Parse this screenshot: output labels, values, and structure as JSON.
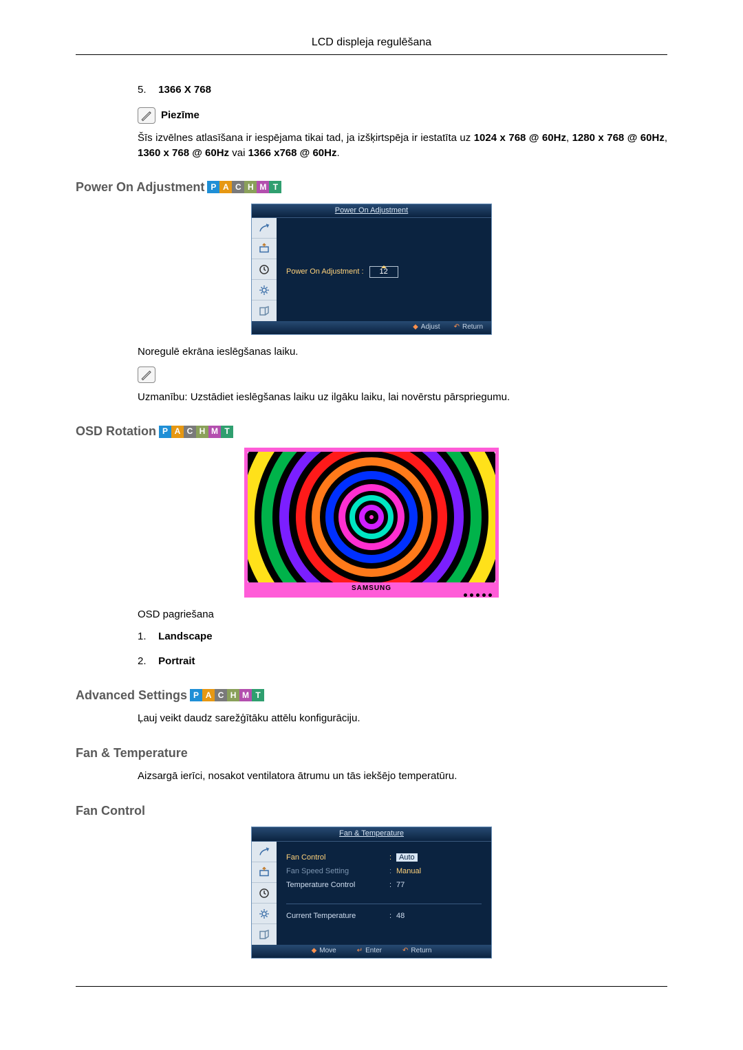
{
  "page_header": "LCD displeja regulēšana",
  "list5": {
    "num": "5.",
    "text": "1366 X 768"
  },
  "note_label": "Piezīme",
  "note_body_1": "Šīs izvēlnes atlasīšana ir iespējama tikai tad, ja izšķirtspēja ir iestatīta uz ",
  "note_bold_1": "1024 x 768 @ 60Hz",
  "note_sep_1": ", ",
  "note_bold_2": "1280 x 768 @ 60Hz",
  "note_sep_2": ", ",
  "note_bold_3": "1360 x 768 @ 60Hz",
  "note_mid": " vai ",
  "note_bold_4": "1366 x768 @ 60Hz",
  "note_tail": ".",
  "sec_power": "Power On Adjustment",
  "badges": {
    "items": [
      "P",
      "A",
      "C",
      "H",
      "M",
      "T"
    ],
    "colors": [
      "#1f8fd6",
      "#e69813",
      "#7a7a7a",
      "#8aa05a",
      "#b34fae",
      "#2f9f6f"
    ]
  },
  "osd_power": {
    "title": "Power On Adjustment",
    "label": "Power On Adjustment :",
    "value": "12",
    "footer_adjust": "Adjust",
    "footer_return": "Return"
  },
  "power_para1": "Noregulē ekrāna ieslēgšanas laiku.",
  "power_para2": "Uzmanību: Uzstādiet ieslēgšanas laiku uz ilgāku laiku, lai novērstu pārspriegumu.",
  "sec_osd_rot": "OSD Rotation",
  "rot_figure": {
    "brand": "SAMSUNG",
    "rings": [
      {
        "size": 520,
        "color": "#00a6ff",
        "w": 22
      },
      {
        "size": 440,
        "color": "#ffffff",
        "w": 18
      },
      {
        "size": 380,
        "color": "#ffe11a",
        "w": 20
      },
      {
        "size": 320,
        "color": "#00b34a",
        "w": 16
      },
      {
        "size": 268,
        "color": "#7b1fff",
        "w": 14
      },
      {
        "size": 220,
        "color": "#ff1a1a",
        "w": 14
      },
      {
        "size": 174,
        "color": "#ff7a1a",
        "w": 12
      },
      {
        "size": 134,
        "color": "#0030ff",
        "w": 12
      },
      {
        "size": 96,
        "color": "#ff2fd0",
        "w": 10
      },
      {
        "size": 64,
        "color": "#00e6c3",
        "w": 8
      },
      {
        "size": 36,
        "color": "#d01fff",
        "w": 8
      }
    ]
  },
  "rot_caption": "OSD pagriešana",
  "rot_items": {
    "1": {
      "num": "1.",
      "text": "Landscape"
    },
    "2": {
      "num": "2.",
      "text": "Portrait"
    }
  },
  "sec_adv": "Advanced Settings",
  "adv_para": "Ļauj veikt daudz sarežģītāku attēlu konfigurāciju.",
  "sec_fan": "Fan & Temperature",
  "fan_para": "Aizsargā ierīci, nosakot ventilatora ātrumu un tās iekšējo temperatūru.",
  "sec_fan_ctrl": "Fan Control",
  "osd_fan": {
    "title": "Fan & Temperature",
    "row1_k": "Fan Control",
    "row1_v_auto": "Auto",
    "row1_v_manual": "Manual",
    "row2_k": "Fan Speed Setting",
    "row3_k": "Temperature Control",
    "row3_v": "77",
    "row4_k": "Current Temperature",
    "row4_v": "48",
    "footer_move": "Move",
    "footer_enter": "Enter",
    "footer_return": "Return"
  }
}
